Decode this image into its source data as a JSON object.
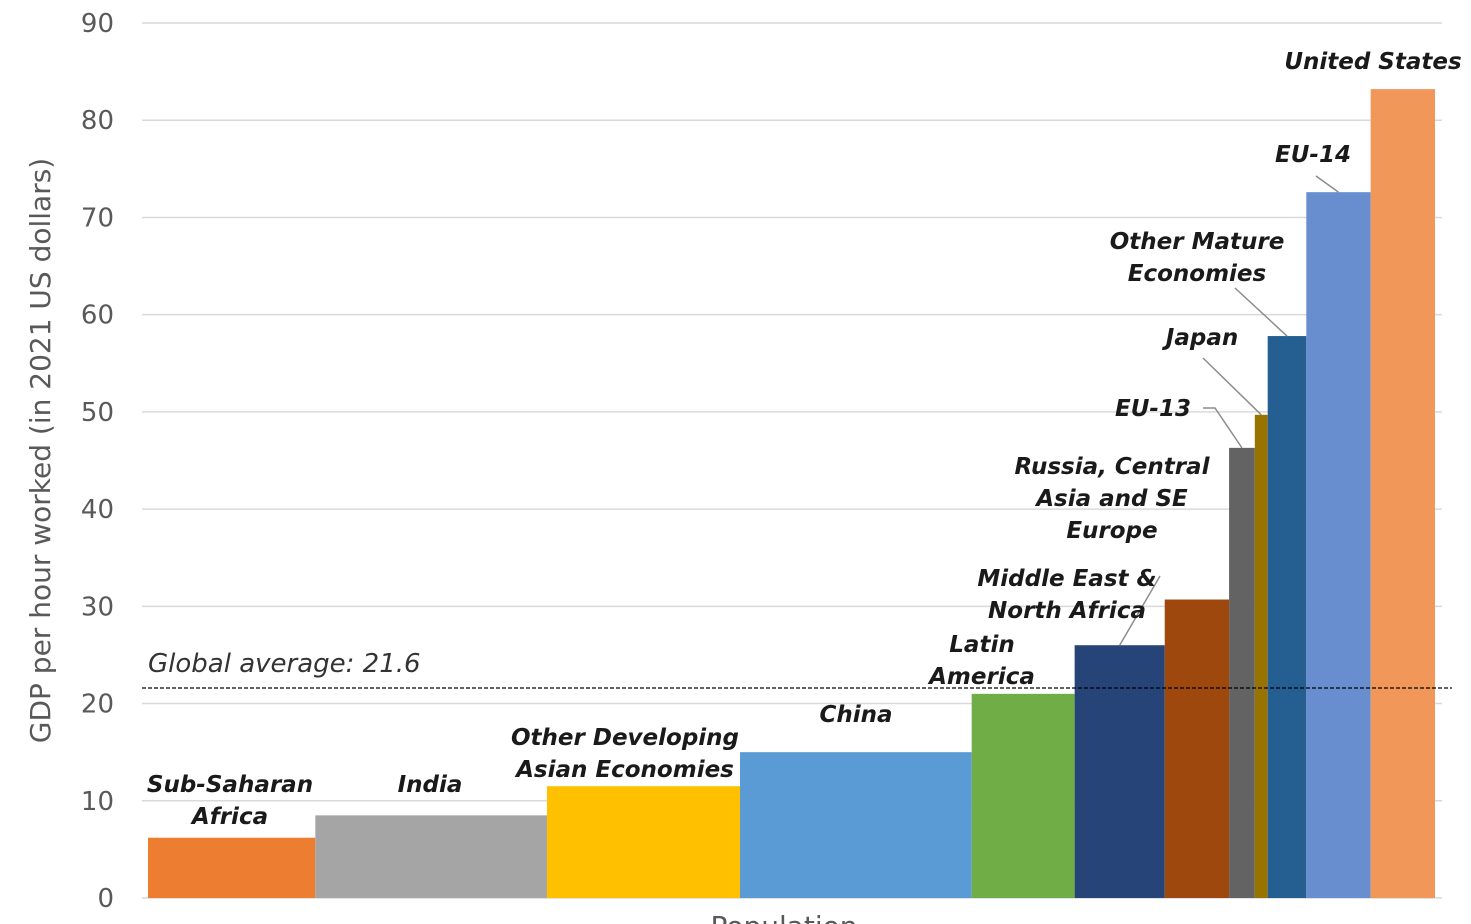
{
  "chart_data": {
    "type": "bar",
    "subtype": "variable-width",
    "ylabel": "GDP per hour worked (in 2021 US dollars)",
    "xlabel": "Population",
    "ylim": [
      0,
      90
    ],
    "yticks": [
      0,
      10,
      20,
      30,
      40,
      50,
      60,
      70,
      80,
      90
    ],
    "grid": true,
    "global_average": {
      "label": "Global average: 21.6",
      "value": 21.6
    },
    "series": [
      {
        "name": "Sub-Saharan Africa",
        "label_lines": [
          "Sub-Saharan",
          "Africa"
        ],
        "value": 6.2,
        "population_share": 13.0,
        "color": "#ED7D31"
      },
      {
        "name": "India",
        "label_lines": [
          "India"
        ],
        "value": 8.5,
        "population_share": 18.0,
        "color": "#A5A5A5"
      },
      {
        "name": "Other Developing Asian Economies",
        "label_lines": [
          "Other Developing",
          "Asian Economies"
        ],
        "value": 11.5,
        "population_share": 15.0,
        "color": "#FFC000"
      },
      {
        "name": "China",
        "label_lines": [
          "China"
        ],
        "value": 15.0,
        "population_share": 18.0,
        "color": "#5B9BD5"
      },
      {
        "name": "Latin America",
        "label_lines": [
          "Latin",
          "America"
        ],
        "value": 21.0,
        "population_share": 8.0,
        "color": "#70AD47"
      },
      {
        "name": "Middle East & North Africa",
        "label_lines": [
          "Middle East &",
          "North Africa"
        ],
        "value": 26.0,
        "population_share": 7.0,
        "color": "#264478"
      },
      {
        "name": "Russia, Central Asia and SE Europe",
        "label_lines": [
          "Russia, Central",
          "Asia and SE",
          "Europe"
        ],
        "value": 30.7,
        "population_share": 5.0,
        "color": "#9E480E"
      },
      {
        "name": "EU-13",
        "label_lines": [
          "EU-13"
        ],
        "value": 46.3,
        "population_share": 2.0,
        "color": "#636363"
      },
      {
        "name": "Japan",
        "label_lines": [
          "Japan"
        ],
        "value": 49.7,
        "population_share": 1.0,
        "color": "#997300"
      },
      {
        "name": "Other Mature Economies",
        "label_lines": [
          "Other Mature",
          "Economies"
        ],
        "value": 57.8,
        "population_share": 3.0,
        "color": "#255E91"
      },
      {
        "name": "EU-14",
        "label_lines": [
          "EU-14"
        ],
        "value": 72.6,
        "population_share": 5.0,
        "color": "#698ED0"
      },
      {
        "name": "United States",
        "label_lines": [
          "United States"
        ],
        "value": 83.2,
        "population_share": 5.0,
        "color": "#F1975A"
      }
    ]
  }
}
